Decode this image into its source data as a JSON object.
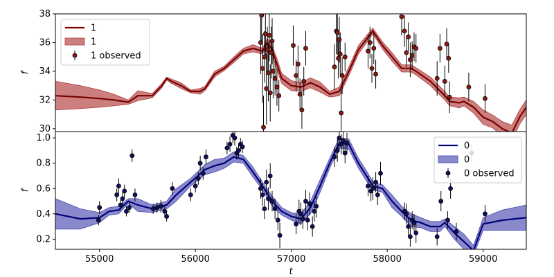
{
  "chart_data": [
    {
      "type": "line",
      "panel": "top",
      "xlabel": "",
      "ylabel": "f",
      "xlim": [
        54540,
        59450
      ],
      "ylim": [
        29.8,
        38.0
      ],
      "yticks": [
        30,
        32,
        34,
        36,
        38
      ],
      "ytick_labels": [
        "30",
        "32",
        "34",
        "36",
        "38"
      ],
      "legend": "upper-left",
      "colors": {
        "line": "#7a0000",
        "band": "#b03a3a",
        "marker": "#8b1a10"
      },
      "legend_labels": {
        "line": "1",
        "band": "1",
        "points": "1 observed"
      },
      "model": {
        "name": "1",
        "x": [
          54540,
          54800,
          55000,
          55150,
          55300,
          55400,
          55550,
          55650,
          55700,
          55750,
          55850,
          55950,
          56050,
          56100,
          56200,
          56300,
          56400,
          56500,
          56600,
          56700,
          56750,
          56800,
          56850,
          56900,
          57000,
          57100,
          57200,
          57300,
          57400,
          57500,
          57600,
          57700,
          57850,
          57950,
          58050,
          58150,
          58250,
          58300,
          58450,
          58600,
          58650,
          58750,
          58800,
          58900,
          59000,
          59100,
          59200,
          59300,
          59380,
          59450
        ],
        "y": [
          32.3,
          32.2,
          32.1,
          32.0,
          31.85,
          32.3,
          32.3,
          33.0,
          33.5,
          33.3,
          33.0,
          32.6,
          32.6,
          32.8,
          33.8,
          34.2,
          34.8,
          35.4,
          35.6,
          35.4,
          36.0,
          35.5,
          34.5,
          33.5,
          33.0,
          32.9,
          33.2,
          32.9,
          32.4,
          32.6,
          34.0,
          35.5,
          36.8,
          35.8,
          35.0,
          34.2,
          34.2,
          34.0,
          33.3,
          32.3,
          31.9,
          31.8,
          31.9,
          31.5,
          30.8,
          30.5,
          30.0,
          29.7,
          30.8,
          31.5
        ],
        "sigma": [
          1.0,
          0.8,
          0.6,
          0.4,
          0.15,
          0.35,
          0.15,
          0.15,
          0.1,
          0.15,
          0.2,
          0.1,
          0.2,
          0.15,
          0.2,
          0.15,
          0.2,
          0.2,
          0.25,
          0.2,
          0.3,
          0.25,
          0.4,
          0.35,
          0.35,
          0.3,
          0.35,
          0.35,
          0.2,
          0.3,
          0.3,
          0.3,
          0.2,
          0.25,
          0.3,
          0.25,
          0.25,
          0.25,
          0.3,
          0.3,
          0.3,
          0.35,
          0.3,
          0.4,
          0.5,
          0.45,
          0.5,
          0.55,
          0.5,
          0.5
        ]
      },
      "observed": {
        "name": "1 observed",
        "x": [
          56680,
          56690,
          56700,
          56710,
          56720,
          56730,
          56740,
          56750,
          56760,
          56770,
          56780,
          56790,
          56800,
          56810,
          56830,
          56850,
          56870,
          57020,
          57050,
          57070,
          57090,
          57110,
          57130,
          57150,
          57450,
          57470,
          57480,
          57490,
          57500,
          57510,
          57520,
          57530,
          57560,
          57800,
          57820,
          57840,
          57860,
          57880,
          58150,
          58180,
          58200,
          58220,
          58240,
          58260,
          58280,
          58300,
          58520,
          58550,
          58600,
          58620,
          58640,
          58650,
          58850,
          59020
        ],
        "y": [
          36.0,
          37.9,
          34.2,
          30.1,
          35.0,
          36.6,
          32.8,
          35.5,
          33.9,
          36.5,
          32.5,
          35.3,
          36.1,
          34.0,
          33.5,
          32.9,
          32.3,
          35.8,
          33.7,
          34.5,
          32.4,
          31.3,
          33.3,
          35.6,
          34.3,
          36.8,
          36.7,
          34.9,
          36.2,
          35.2,
          31.1,
          33.7,
          35.0,
          35.4,
          36.0,
          34.2,
          35.6,
          33.8,
          37.8,
          36.8,
          35.3,
          36.4,
          34.8,
          35.1,
          35.7,
          35.6,
          33.5,
          35.6,
          33.3,
          35.9,
          34.9,
          32.2,
          32.9,
          32.1
        ],
        "err": [
          2.2,
          2.0,
          2.4,
          2.2,
          1.8,
          1.6,
          2.5,
          1.6,
          2.0,
          1.8,
          2.0,
          1.8,
          1.6,
          1.9,
          1.2,
          1.3,
          1.1,
          1.4,
          1.1,
          1.3,
          1.1,
          1.3,
          1.0,
          1.2,
          1.6,
          1.6,
          1.6,
          1.4,
          1.6,
          1.5,
          1.6,
          1.3,
          1.0,
          1.2,
          1.1,
          1.0,
          1.1,
          1.0,
          1.3,
          1.1,
          1.0,
          1.0,
          1.2,
          1.0,
          1.0,
          1.0,
          1.2,
          1.0,
          1.1,
          1.1,
          1.0,
          1.1,
          1.0,
          1.0
        ]
      }
    },
    {
      "type": "line",
      "panel": "bottom",
      "xlabel": "t",
      "ylabel": "f",
      "xlim": [
        54540,
        59450
      ],
      "ylim": [
        0.12,
        1.05
      ],
      "xticks": [
        55000,
        56000,
        57000,
        58000,
        59000
      ],
      "xtick_labels": [
        "55000",
        "56000",
        "57000",
        "58000",
        "59000"
      ],
      "yticks": [
        0.2,
        0.4,
        0.6,
        0.8,
        1.0
      ],
      "ytick_labels": [
        "0.2",
        "0.4",
        "0.6",
        "0.8",
        "1.0"
      ],
      "legend": "upper-right",
      "colors": {
        "line": "#00007a",
        "band": "#4a4ab0",
        "marker": "#101060"
      },
      "legend_labels": {
        "line": "0",
        "band": "0",
        "points": "0 observed"
      },
      "model": {
        "name": "0",
        "x": [
          54540,
          54800,
          55000,
          55100,
          55200,
          55300,
          55400,
          55550,
          55700,
          55800,
          55950,
          56100,
          56200,
          56300,
          56400,
          56500,
          56600,
          56700,
          56800,
          56900,
          57000,
          57100,
          57200,
          57300,
          57400,
          57500,
          57600,
          57700,
          57800,
          57850,
          57950,
          58050,
          58150,
          58250,
          58350,
          58450,
          58550,
          58600,
          58700,
          58800,
          58900,
          59000,
          59200,
          59450
        ],
        "y": [
          0.4,
          0.36,
          0.37,
          0.42,
          0.43,
          0.5,
          0.47,
          0.44,
          0.47,
          0.55,
          0.65,
          0.75,
          0.78,
          0.8,
          0.85,
          0.83,
          0.73,
          0.62,
          0.5,
          0.42,
          0.38,
          0.36,
          0.45,
          0.62,
          0.8,
          0.96,
          0.95,
          0.8,
          0.68,
          0.62,
          0.6,
          0.5,
          0.42,
          0.35,
          0.33,
          0.3,
          0.3,
          0.33,
          0.25,
          0.18,
          0.11,
          0.32,
          0.35,
          0.37
        ],
        "sigma": [
          0.12,
          0.08,
          0.04,
          0.03,
          0.03,
          0.02,
          0.05,
          0.03,
          0.03,
          0.05,
          0.03,
          0.04,
          0.05,
          0.04,
          0.04,
          0.03,
          0.04,
          0.03,
          0.04,
          0.03,
          0.03,
          0.04,
          0.05,
          0.05,
          0.04,
          0.04,
          0.04,
          0.04,
          0.04,
          0.03,
          0.03,
          0.05,
          0.04,
          0.05,
          0.04,
          0.04,
          0.04,
          0.03,
          0.05,
          0.06,
          0.04,
          0.05,
          0.08,
          0.1
        ]
      },
      "observed": {
        "name": "0 observed",
        "x": [
          54990,
          55000,
          55180,
          55200,
          55220,
          55240,
          55260,
          55280,
          55310,
          55340,
          55370,
          55560,
          55600,
          55640,
          55680,
          55700,
          55760,
          55950,
          56000,
          56030,
          56050,
          56080,
          56110,
          56330,
          56360,
          56390,
          56410,
          56430,
          56450,
          56470,
          56490,
          56680,
          56700,
          56720,
          56740,
          56760,
          56780,
          56800,
          56830,
          56860,
          56880,
          57050,
          57080,
          57100,
          57120,
          57150,
          57170,
          57190,
          57220,
          57240,
          57260,
          57450,
          57480,
          57500,
          57520,
          57540,
          57560,
          57580,
          57800,
          57830,
          57850,
          57880,
          57900,
          57930,
          58180,
          58200,
          58220,
          58240,
          58260,
          58280,
          58300,
          58520,
          58560,
          58630,
          58660,
          58720,
          58880,
          59020
        ],
        "y": [
          0.35,
          0.45,
          0.55,
          0.62,
          0.47,
          0.52,
          0.58,
          0.42,
          0.45,
          0.86,
          0.55,
          0.44,
          0.45,
          0.46,
          0.42,
          0.38,
          0.6,
          0.55,
          0.62,
          0.68,
          0.8,
          0.72,
          0.85,
          0.92,
          0.95,
          1.02,
          1.0,
          0.88,
          0.9,
          0.95,
          0.93,
          0.6,
          0.55,
          0.44,
          0.65,
          0.52,
          0.7,
          0.5,
          0.44,
          0.35,
          0.23,
          0.32,
          0.42,
          0.4,
          0.36,
          0.5,
          0.35,
          0.48,
          0.3,
          0.42,
          0.46,
          0.85,
          0.9,
          1.0,
          0.95,
          0.98,
          0.88,
          0.96,
          0.62,
          0.58,
          0.6,
          0.65,
          0.55,
          0.72,
          0.42,
          0.4,
          0.3,
          0.22,
          0.35,
          0.33,
          0.25,
          0.22,
          0.5,
          0.35,
          0.6,
          0.26,
          0.88,
          0.4
        ],
        "err": [
          0.04,
          0.05,
          0.05,
          0.06,
          0.04,
          0.05,
          0.05,
          0.04,
          0.04,
          0.05,
          0.05,
          0.04,
          0.04,
          0.05,
          0.05,
          0.04,
          0.05,
          0.05,
          0.05,
          0.05,
          0.06,
          0.05,
          0.06,
          0.05,
          0.06,
          0.06,
          0.06,
          0.05,
          0.05,
          0.05,
          0.05,
          0.08,
          0.09,
          0.08,
          0.1,
          0.09,
          0.1,
          0.08,
          0.08,
          0.08,
          0.1,
          0.08,
          0.09,
          0.09,
          0.08,
          0.09,
          0.08,
          0.09,
          0.08,
          0.08,
          0.09,
          0.08,
          0.09,
          0.09,
          0.08,
          0.09,
          0.08,
          0.08,
          0.08,
          0.08,
          0.09,
          0.08,
          0.08,
          0.09,
          0.07,
          0.08,
          0.07,
          0.08,
          0.07,
          0.07,
          0.08,
          0.07,
          0.08,
          0.07,
          0.08,
          0.07,
          0.07,
          0.07
        ]
      }
    }
  ]
}
